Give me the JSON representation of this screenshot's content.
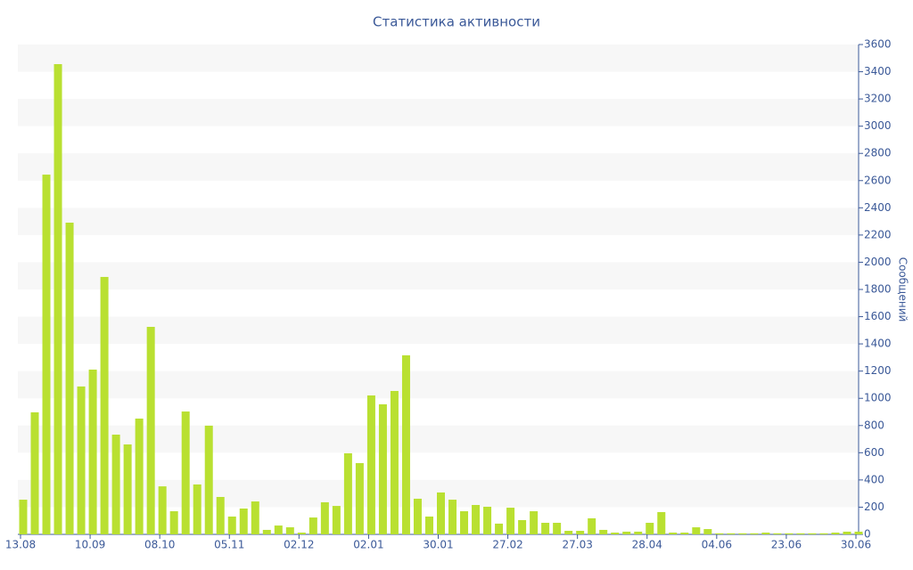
{
  "chart_data": {
    "type": "bar",
    "title": "Статистика активности",
    "y_label": "Сообщений",
    "categories": [
      "13.08",
      null,
      null,
      null,
      null,
      null,
      "10.09",
      null,
      null,
      null,
      null,
      null,
      "08.10",
      null,
      null,
      null,
      null,
      null,
      "05.11",
      null,
      null,
      null,
      null,
      null,
      "02.12",
      null,
      null,
      null,
      null,
      null,
      "02.01",
      null,
      null,
      null,
      null,
      null,
      "30.01",
      null,
      null,
      null,
      null,
      null,
      "27.02",
      null,
      null,
      null,
      null,
      null,
      "27.03",
      null,
      null,
      null,
      null,
      null,
      "28.04",
      null,
      null,
      null,
      null,
      null,
      "04.06",
      null,
      null,
      null,
      null,
      null,
      "23.06",
      null,
      null,
      null,
      null,
      null,
      "30.06"
    ],
    "values": [
      255,
      897,
      2644,
      3456,
      2291,
      1087,
      1211,
      1892,
      733,
      661,
      851,
      1525,
      353,
      170,
      903,
      367,
      799,
      275,
      131,
      190,
      242,
      33,
      65,
      52,
      13,
      124,
      236,
      209,
      596,
      524,
      1021,
      956,
      1054,
      1316,
      262,
      131,
      308,
      255,
      170,
      216,
      203,
      79,
      196,
      105,
      170,
      85,
      85,
      26,
      26,
      118,
      33,
      13,
      20,
      20,
      85,
      164,
      13,
      13,
      52,
      39,
      8,
      8,
      8,
      8,
      13,
      8,
      8,
      8,
      8,
      8,
      13,
      20,
      20
    ],
    "color": "#b9e031",
    "ylim": [
      0,
      3600
    ],
    "yticks": [
      0,
      200,
      400,
      600,
      800,
      1000,
      1200,
      1400,
      1600,
      1800,
      2000,
      2200,
      2400,
      2600,
      2800,
      3000,
      3200,
      3400,
      3600
    ],
    "grid": "bands",
    "y_axis_side": "right"
  }
}
